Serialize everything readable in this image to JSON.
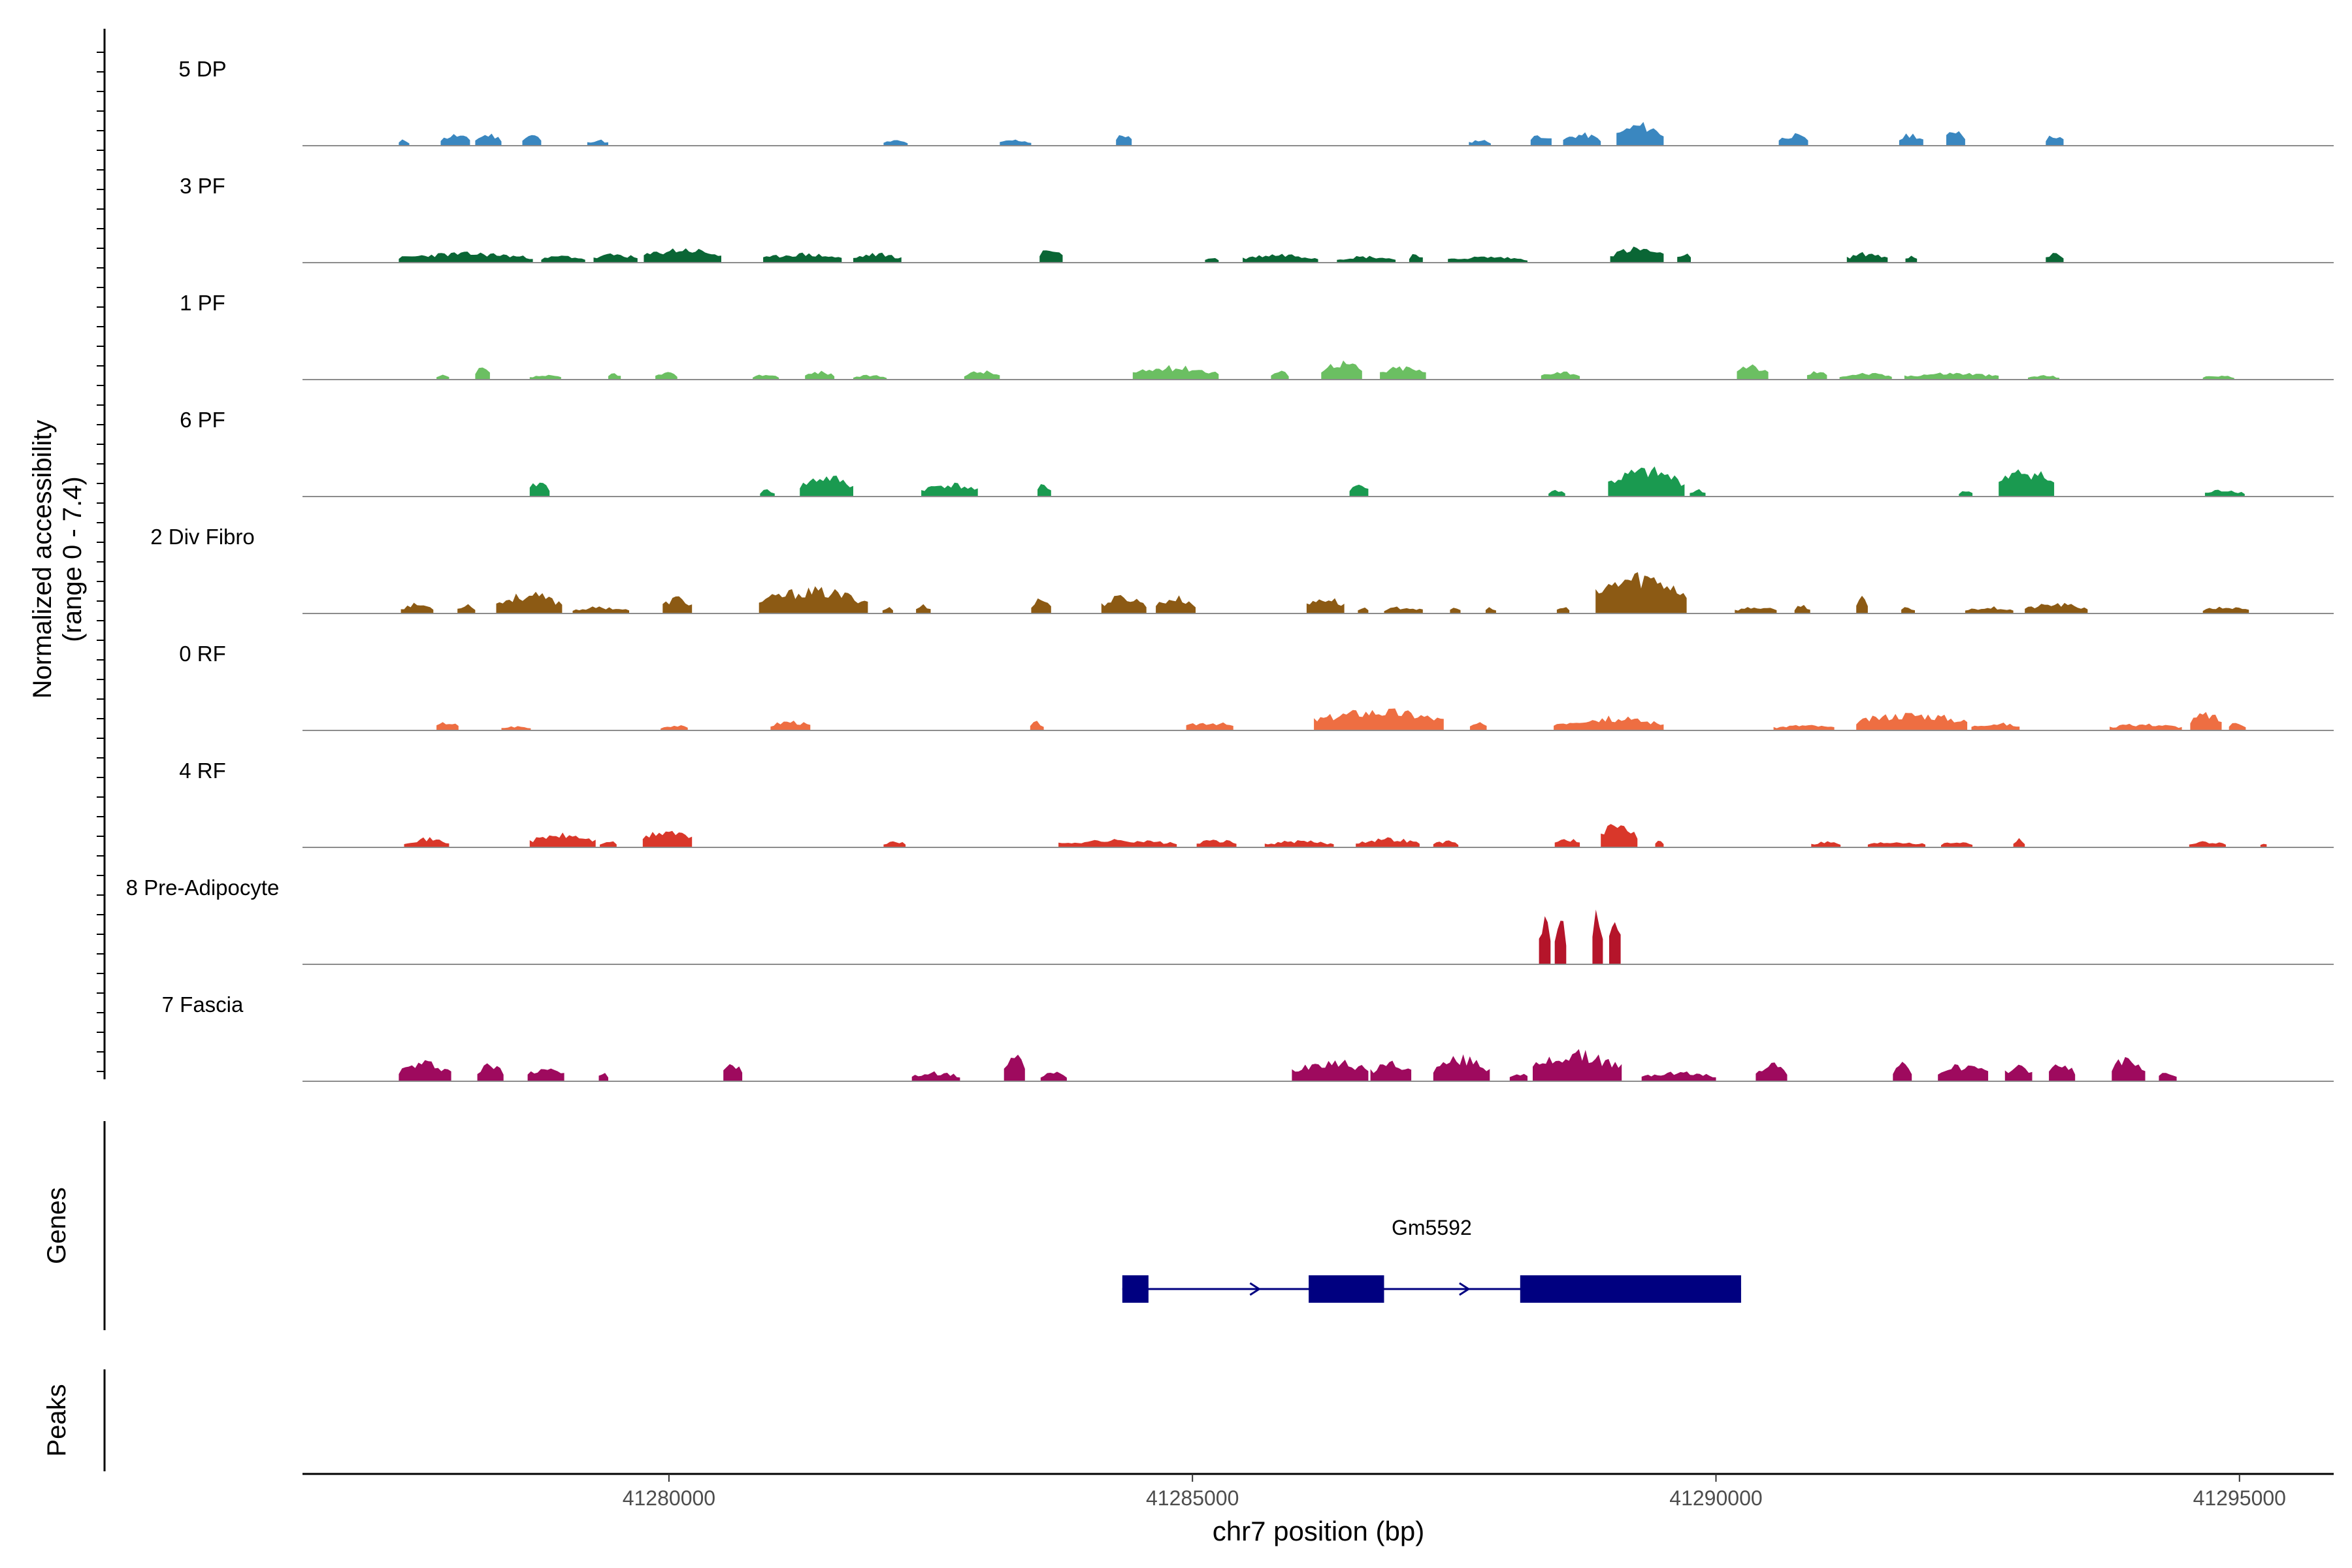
{
  "chart_data": {
    "type": "area",
    "title": "",
    "xlabel": "chr7 position (bp)",
    "ylabel_line1": "Normalized accessibility",
    "ylabel_line2": "(range 0 - 7.4)",
    "genes_label": "Genes",
    "peaks_label": "Peaks",
    "xlim": [
      41276500,
      41295900
    ],
    "x_ticks": [
      41280000,
      41285000,
      41290000,
      41295000
    ],
    "x_tick_labels": [
      "41280000",
      "41285000",
      "41290000",
      "41295000"
    ],
    "y_range": [
      0,
      7.4
    ],
    "tracks": [
      {
        "name": "5 DP",
        "color": "#3a87c0",
        "seed": 11,
        "regions": [
          [
            41277420,
            41277520,
            0.28
          ],
          [
            41277820,
            41278100,
            0.52
          ],
          [
            41278150,
            41278400,
            0.55
          ],
          [
            41278600,
            41278780,
            0.52
          ],
          [
            41279220,
            41279420,
            0.28
          ],
          [
            41282050,
            41282280,
            0.25
          ],
          [
            41283160,
            41283460,
            0.28
          ],
          [
            41284270,
            41284420,
            0.55
          ],
          [
            41287640,
            41287850,
            0.28
          ],
          [
            41288230,
            41288430,
            0.55
          ],
          [
            41288540,
            41288900,
            0.55
          ],
          [
            41289050,
            41289500,
            1.0
          ],
          [
            41290600,
            41290880,
            0.52
          ],
          [
            41291750,
            41291980,
            0.55
          ],
          [
            41292200,
            41292380,
            0.8
          ],
          [
            41293150,
            41293320,
            0.52
          ]
        ]
      },
      {
        "name": "3 PF",
        "color": "#0a6635",
        "seed": 23,
        "regions": [
          [
            41277420,
            41278700,
            0.45
          ],
          [
            41278780,
            41279200,
            0.32
          ],
          [
            41279280,
            41279700,
            0.4
          ],
          [
            41279760,
            41280500,
            0.65
          ],
          [
            41280900,
            41281650,
            0.42
          ],
          [
            41281760,
            41282220,
            0.42
          ],
          [
            41283540,
            41283760,
            0.68
          ],
          [
            41285120,
            41285250,
            0.25
          ],
          [
            41285480,
            41286200,
            0.4
          ],
          [
            41286380,
            41286940,
            0.3
          ],
          [
            41287070,
            41287200,
            0.45
          ],
          [
            41287440,
            41288200,
            0.28
          ],
          [
            41288990,
            41289500,
            0.68
          ],
          [
            41289630,
            41289760,
            0.45
          ],
          [
            41291250,
            41291640,
            0.45
          ],
          [
            41291810,
            41291920,
            0.3
          ],
          [
            41293150,
            41293320,
            0.45
          ]
        ]
      },
      {
        "name": "1 PF",
        "color": "#6bbf62",
        "seed": 37,
        "regions": [
          [
            41277780,
            41277900,
            0.2
          ],
          [
            41278150,
            41278290,
            0.55
          ],
          [
            41278670,
            41278970,
            0.2
          ],
          [
            41279420,
            41279540,
            0.32
          ],
          [
            41279870,
            41280080,
            0.32
          ],
          [
            41280800,
            41281050,
            0.25
          ],
          [
            41281300,
            41281580,
            0.38
          ],
          [
            41281760,
            41282080,
            0.2
          ],
          [
            41282820,
            41283160,
            0.4
          ],
          [
            41284430,
            41285250,
            0.6
          ],
          [
            41285750,
            41285920,
            0.4
          ],
          [
            41286230,
            41286620,
            0.85
          ],
          [
            41286790,
            41287230,
            0.6
          ],
          [
            41288330,
            41288700,
            0.4
          ],
          [
            41290200,
            41290500,
            0.65
          ],
          [
            41290870,
            41291060,
            0.4
          ],
          [
            41291180,
            41291680,
            0.3
          ],
          [
            41291800,
            41292700,
            0.32
          ],
          [
            41292980,
            41293280,
            0.2
          ],
          [
            41294650,
            41294950,
            0.2
          ]
        ]
      },
      {
        "name": "6 PF",
        "color": "#1a9a50",
        "seed": 41,
        "regions": [
          [
            41278670,
            41278860,
            0.7
          ],
          [
            41280870,
            41281010,
            0.32
          ],
          [
            41281250,
            41281760,
            0.95
          ],
          [
            41282410,
            41282950,
            0.6
          ],
          [
            41283520,
            41283650,
            0.6
          ],
          [
            41286500,
            41286680,
            0.6
          ],
          [
            41288400,
            41288560,
            0.32
          ],
          [
            41288970,
            41289700,
            1.25
          ],
          [
            41289750,
            41289900,
            0.32
          ],
          [
            41292320,
            41292450,
            0.3
          ],
          [
            41292700,
            41293230,
            1.25
          ],
          [
            41294670,
            41295050,
            0.32
          ]
        ]
      },
      {
        "name": "2 Div Fibro",
        "color": "#8c5a14",
        "seed": 53,
        "regions": [
          [
            41277440,
            41277750,
            0.45
          ],
          [
            41277980,
            41278150,
            0.45
          ],
          [
            41278350,
            41278980,
            0.9
          ],
          [
            41279080,
            41279620,
            0.3
          ],
          [
            41279940,
            41280220,
            0.75
          ],
          [
            41280860,
            41281900,
            1.1
          ],
          [
            41282040,
            41282140,
            0.3
          ],
          [
            41282360,
            41282500,
            0.4
          ],
          [
            41283460,
            41283650,
            0.72
          ],
          [
            41284130,
            41284560,
            0.8
          ],
          [
            41284650,
            41285030,
            0.75
          ],
          [
            41286090,
            41286450,
            0.75
          ],
          [
            41286580,
            41286680,
            0.3
          ],
          [
            41286830,
            41287200,
            0.3
          ],
          [
            41287460,
            41287560,
            0.3
          ],
          [
            41287800,
            41287900,
            0.3
          ],
          [
            41288480,
            41288600,
            0.3
          ],
          [
            41288850,
            41289720,
            1.8
          ],
          [
            41290180,
            41290580,
            0.3
          ],
          [
            41290750,
            41290900,
            0.4
          ],
          [
            41291340,
            41291450,
            0.72
          ],
          [
            41291770,
            41291900,
            0.3
          ],
          [
            41292380,
            41292840,
            0.3
          ],
          [
            41292950,
            41293550,
            0.45
          ],
          [
            41294650,
            41295090,
            0.3
          ]
        ]
      },
      {
        "name": "0 RF",
        "color": "#ee6e42",
        "seed": 67,
        "regions": [
          [
            41277780,
            41277990,
            0.4
          ],
          [
            41278400,
            41278680,
            0.2
          ],
          [
            41279920,
            41280180,
            0.25
          ],
          [
            41280970,
            41281350,
            0.45
          ],
          [
            41283450,
            41283580,
            0.4
          ],
          [
            41284940,
            41285390,
            0.4
          ],
          [
            41286160,
            41287400,
            0.95
          ],
          [
            41287650,
            41287810,
            0.35
          ],
          [
            41288450,
            41289500,
            0.6
          ],
          [
            41290550,
            41291130,
            0.25
          ],
          [
            41291340,
            41292400,
            0.8
          ],
          [
            41292440,
            41292900,
            0.35
          ],
          [
            41293760,
            41294450,
            0.3
          ],
          [
            41294530,
            41294830,
            0.8
          ],
          [
            41294900,
            41295060,
            0.4
          ]
        ]
      },
      {
        "name": "4 RF",
        "color": "#d9372a",
        "seed": 71,
        "regions": [
          [
            41277470,
            41277900,
            0.42
          ],
          [
            41278670,
            41279300,
            0.6
          ],
          [
            41279340,
            41279500,
            0.3
          ],
          [
            41279750,
            41280220,
            0.8
          ],
          [
            41282050,
            41282260,
            0.3
          ],
          [
            41283720,
            41284850,
            0.35
          ],
          [
            41285040,
            41285420,
            0.35
          ],
          [
            41285690,
            41286350,
            0.3
          ],
          [
            41286560,
            41287170,
            0.42
          ],
          [
            41287300,
            41287540,
            0.3
          ],
          [
            41288460,
            41288700,
            0.42
          ],
          [
            41288900,
            41289250,
            1.1
          ],
          [
            41289420,
            41289500,
            0.42
          ],
          [
            41290910,
            41291190,
            0.28
          ],
          [
            41291450,
            41292000,
            0.28
          ],
          [
            41292150,
            41292450,
            0.28
          ],
          [
            41292840,
            41292950,
            0.42
          ],
          [
            41294520,
            41294870,
            0.28
          ],
          [
            41295200,
            41295260,
            0.25
          ]
        ]
      },
      {
        "name": "8 Pre-Adipocyte",
        "color": "#b5152a",
        "seed": 83,
        "regions": [
          [
            41288310,
            41288420,
            2.4
          ],
          [
            41288460,
            41288570,
            2.4
          ],
          [
            41288820,
            41288920,
            2.4
          ],
          [
            41288980,
            41289090,
            2.4
          ]
        ]
      },
      {
        "name": "7 Fascia",
        "color": "#9e0a5e",
        "seed": 97,
        "regions": [
          [
            41277420,
            41277920,
            0.9
          ],
          [
            41278170,
            41278420,
            0.8
          ],
          [
            41278650,
            41279000,
            0.7
          ],
          [
            41279330,
            41279420,
            0.42
          ],
          [
            41280520,
            41280700,
            0.85
          ],
          [
            41282320,
            41282780,
            0.42
          ],
          [
            41283200,
            41283400,
            1.2
          ],
          [
            41283550,
            41283800,
            0.42
          ],
          [
            41285950,
            41286680,
            1.0
          ],
          [
            41286700,
            41287090,
            0.9
          ],
          [
            41287300,
            41287840,
            1.1
          ],
          [
            41288030,
            41288200,
            0.42
          ],
          [
            41288250,
            41289100,
            1.3
          ],
          [
            41289290,
            41290000,
            0.42
          ],
          [
            41290380,
            41290680,
            0.85
          ],
          [
            41291690,
            41291870,
            0.8
          ],
          [
            41292120,
            41292600,
            0.75
          ],
          [
            41292760,
            41293020,
            0.8
          ],
          [
            41293180,
            41293430,
            0.85
          ],
          [
            41293780,
            41294100,
            1.1
          ],
          [
            41294230,
            41294400,
            0.42
          ]
        ]
      }
    ],
    "gene": {
      "name": "Gm5592",
      "strand": "+",
      "start": 41284330,
      "end": 41290240,
      "exons": [
        [
          41284330,
          41284580
        ],
        [
          41286110,
          41286830
        ],
        [
          41288130,
          41290240
        ]
      ],
      "arrows": [
        41284440,
        41285600,
        41287600
      ]
    },
    "peaks": []
  }
}
